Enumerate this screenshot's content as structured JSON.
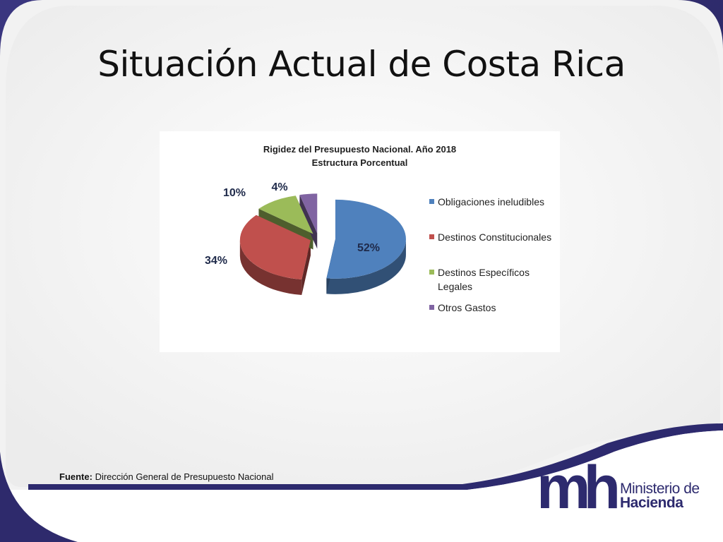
{
  "slide": {
    "title": "Situación Actual de Costa Rica",
    "source_label": "Fuente:",
    "source_text": "Dirección General de Presupuesto Nacional"
  },
  "logo": {
    "mark": "mh",
    "line1": "Ministerio de",
    "line2": "Hacienda",
    "color": "#2d2a6e"
  },
  "theme": {
    "frame_color": "#2e2a6c",
    "accent_dark": "#2b2869"
  },
  "chart_data": {
    "type": "pie",
    "title": "Rigidez del Presupuesto Nacional. Año 2018",
    "subtitle": "Estructura Porcentual",
    "slices": [
      {
        "label": "Obligaciones ineludibles",
        "value": 52,
        "display": "52%",
        "color": "#4f81bd"
      },
      {
        "label": "Destinos Constitucionales",
        "value": 34,
        "display": "34%",
        "color": "#c0504d"
      },
      {
        "label": "Destinos Específicos Legales",
        "value": 10,
        "display": "10%",
        "color": "#9bbb59"
      },
      {
        "label": "Otros Gastos",
        "value": 4,
        "display": "4%",
        "color": "#8064a2"
      }
    ],
    "legend_position": "right",
    "exploded": true,
    "three_d": true,
    "label_color": "#1f2a4a"
  }
}
